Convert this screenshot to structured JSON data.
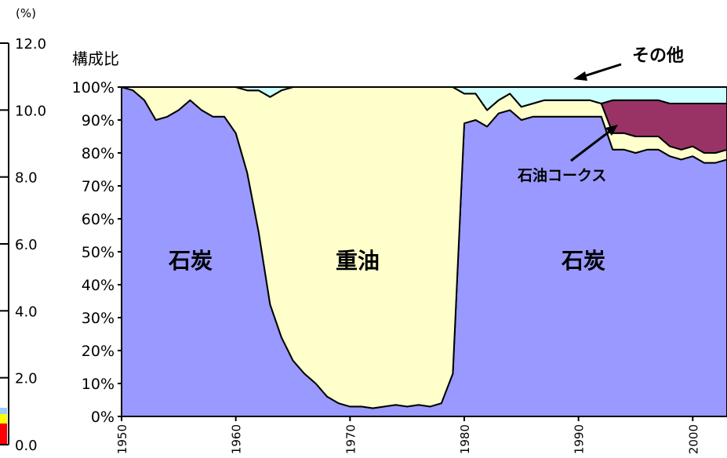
{
  "chart_data": {
    "type": "area",
    "stacked": true,
    "percent_stacked": true,
    "ylabel": "構成比",
    "ylim": [
      0,
      100
    ],
    "xlim": [
      1950,
      2003
    ],
    "y_tick_labels": [
      "0%",
      "10%",
      "20%",
      "30%",
      "40%",
      "50%",
      "60%",
      "70%",
      "80%",
      "90%",
      "100%"
    ],
    "x_tick_labels": [
      "1950",
      "1960",
      "1970",
      "1980",
      "1990",
      "2000"
    ],
    "secondary_axis": {
      "unit_label": "(%)",
      "tick_labels": [
        "0.0",
        "2.0",
        "4.0",
        "6.0",
        "8.0",
        "10.0",
        "12.0"
      ]
    },
    "grid": false,
    "series": [
      {
        "label": "石炭",
        "color": "#9999ff",
        "x": [
          1950,
          1951,
          1952,
          1953,
          1954,
          1955,
          1956,
          1957,
          1958,
          1959,
          1960,
          1961,
          1962,
          1963,
          1964,
          1965,
          1966,
          1967,
          1968,
          1969,
          1970,
          1971,
          1972,
          1973,
          1974,
          1975,
          1976,
          1977,
          1978,
          1979,
          1980,
          1981,
          1982,
          1983,
          1984,
          1985,
          1986,
          1987,
          1988,
          1989,
          1990,
          1991,
          1992,
          1993,
          1994,
          1995,
          1996,
          1997,
          1998,
          1999,
          2000,
          2001,
          2002,
          2003
        ],
        "values": [
          100,
          99,
          96,
          90,
          91,
          93,
          96,
          93,
          91,
          91,
          86,
          74,
          56,
          34,
          24,
          17,
          13,
          10,
          6,
          4,
          3,
          3,
          2.5,
          3,
          3.5,
          3,
          3.5,
          3,
          4,
          13,
          89,
          90,
          88,
          92,
          93,
          90,
          91,
          91,
          91,
          91,
          91,
          91,
          91,
          81,
          81,
          80,
          81,
          81,
          79,
          78,
          79,
          77,
          77,
          78
        ]
      },
      {
        "label": "重油",
        "color": "#ffffcc",
        "x": [
          1950,
          1951,
          1952,
          1953,
          1954,
          1955,
          1956,
          1957,
          1958,
          1959,
          1960,
          1961,
          1962,
          1963,
          1964,
          1965,
          1966,
          1967,
          1968,
          1969,
          1970,
          1971,
          1972,
          1973,
          1974,
          1975,
          1976,
          1977,
          1978,
          1979,
          1980,
          1981,
          1982,
          1983,
          1984,
          1985,
          1986,
          1987,
          1988,
          1989,
          1990,
          1991,
          1992,
          1993,
          1994,
          1995,
          1996,
          1997,
          1998,
          1999,
          2000,
          2001,
          2002,
          2003
        ],
        "values": [
          0,
          1,
          4,
          10,
          9,
          7,
          4,
          7,
          9,
          9,
          14,
          25,
          43,
          63,
          75,
          83,
          87,
          90,
          94,
          96,
          97,
          97,
          97.5,
          97,
          96.5,
          97,
          96.5,
          97,
          96,
          87,
          9,
          8,
          5,
          4,
          5,
          4,
          4,
          5,
          5,
          5,
          5,
          5,
          4,
          5,
          5,
          5,
          4,
          4,
          3,
          3,
          3,
          3,
          3,
          3
        ]
      },
      {
        "label": "石油コークス",
        "color": "#993366",
        "x": [
          1950,
          1951,
          1952,
          1953,
          1954,
          1955,
          1956,
          1957,
          1958,
          1959,
          1960,
          1961,
          1962,
          1963,
          1964,
          1965,
          1966,
          1967,
          1968,
          1969,
          1970,
          1971,
          1972,
          1973,
          1974,
          1975,
          1976,
          1977,
          1978,
          1979,
          1980,
          1981,
          1982,
          1983,
          1984,
          1985,
          1986,
          1987,
          1988,
          1989,
          1990,
          1991,
          1992,
          1993,
          1994,
          1995,
          1996,
          1997,
          1998,
          1999,
          2000,
          2001,
          2002,
          2003
        ],
        "values": [
          0,
          0,
          0,
          0,
          0,
          0,
          0,
          0,
          0,
          0,
          0,
          0,
          0,
          0,
          0,
          0,
          0,
          0,
          0,
          0,
          0,
          0,
          0,
          0,
          0,
          0,
          0,
          0,
          0,
          0,
          0,
          0,
          0,
          0,
          0,
          0,
          0,
          0,
          0,
          0,
          0,
          0,
          0,
          10,
          10,
          11,
          11,
          11,
          13,
          14,
          13,
          15,
          15,
          14
        ]
      },
      {
        "label": "その他",
        "color": "#ccffff",
        "x": [
          1950,
          1951,
          1952,
          1953,
          1954,
          1955,
          1956,
          1957,
          1958,
          1959,
          1960,
          1961,
          1962,
          1963,
          1964,
          1965,
          1966,
          1967,
          1968,
          1969,
          1970,
          1971,
          1972,
          1973,
          1974,
          1975,
          1976,
          1977,
          1978,
          1979,
          1980,
          1981,
          1982,
          1983,
          1984,
          1985,
          1986,
          1987,
          1988,
          1989,
          1990,
          1991,
          1992,
          1993,
          1994,
          1995,
          1996,
          1997,
          1998,
          1999,
          2000,
          2001,
          2002,
          2003
        ],
        "values": [
          0,
          0,
          0,
          0,
          0,
          0,
          0,
          0,
          0,
          0,
          0,
          1,
          1,
          3,
          1,
          0,
          0,
          0,
          0,
          0,
          0,
          0,
          0,
          0,
          0,
          0,
          0,
          0,
          0,
          0,
          2,
          2,
          7,
          4,
          2,
          6,
          5,
          4,
          4,
          4,
          4,
          4,
          5,
          4,
          4,
          4,
          4,
          4,
          5,
          5,
          5,
          5,
          5,
          5
        ]
      }
    ],
    "annotations": {
      "coal_left": "石炭",
      "heavy_oil": "重油",
      "coal_right": "石炭",
      "petroleum_coke": "石油コークス",
      "other": "その他"
    }
  }
}
